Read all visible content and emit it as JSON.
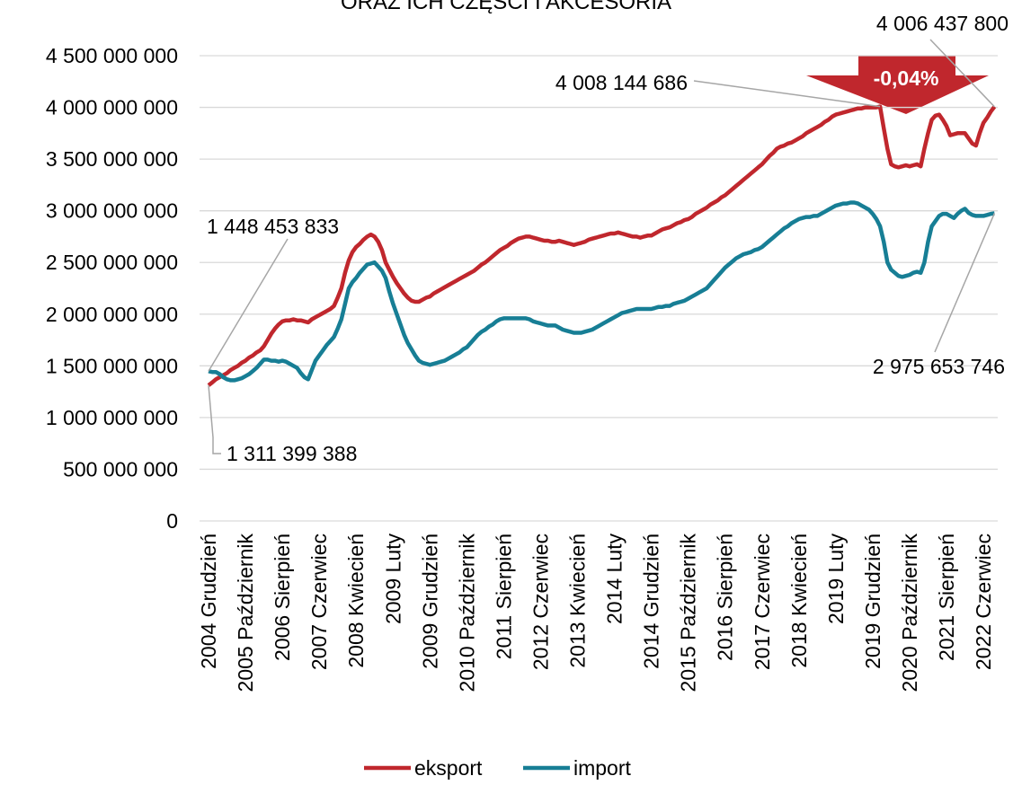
{
  "chart_data": {
    "type": "line",
    "title": "ORAZ ICH CZĘŚCI I AKCESORIA",
    "categories": [
      "2004 Grudzień",
      null,
      null,
      null,
      null,
      null,
      null,
      null,
      null,
      null,
      "2005 Październik",
      null,
      null,
      null,
      null,
      null,
      null,
      null,
      null,
      null,
      "2006 Sierpień",
      null,
      null,
      null,
      null,
      null,
      null,
      null,
      null,
      null,
      "2007 Czerwiec",
      null,
      null,
      null,
      null,
      null,
      null,
      null,
      null,
      null,
      "2008 Kwiecień",
      null,
      null,
      null,
      null,
      null,
      null,
      null,
      null,
      null,
      "2009 Luty",
      null,
      null,
      null,
      null,
      null,
      null,
      null,
      null,
      null,
      "2009 Grudzień",
      null,
      null,
      null,
      null,
      null,
      null,
      null,
      null,
      null,
      "2010 Październik",
      null,
      null,
      null,
      null,
      null,
      null,
      null,
      null,
      null,
      "2011 Sierpień",
      null,
      null,
      null,
      null,
      null,
      null,
      null,
      null,
      null,
      "2012 Czerwiec",
      null,
      null,
      null,
      null,
      null,
      null,
      null,
      null,
      null,
      "2013 Kwiecień",
      null,
      null,
      null,
      null,
      null,
      null,
      null,
      null,
      null,
      "2014 Luty",
      null,
      null,
      null,
      null,
      null,
      null,
      null,
      null,
      null,
      "2014 Grudzień",
      null,
      null,
      null,
      null,
      null,
      null,
      null,
      null,
      null,
      "2015 Październik",
      null,
      null,
      null,
      null,
      null,
      null,
      null,
      null,
      null,
      "2016 Sierpień",
      null,
      null,
      null,
      null,
      null,
      null,
      null,
      null,
      null,
      "2017 Czerwiec",
      null,
      null,
      null,
      null,
      null,
      null,
      null,
      null,
      null,
      "2018 Kwiecień",
      null,
      null,
      null,
      null,
      null,
      null,
      null,
      null,
      null,
      "2019 Luty",
      null,
      null,
      null,
      null,
      null,
      null,
      null,
      null,
      null,
      "2019 Grudzień",
      null,
      null,
      null,
      null,
      null,
      null,
      null,
      null,
      null,
      "2020 Październik",
      null,
      null,
      null,
      null,
      null,
      null,
      null,
      null,
      null,
      "2021 Sierpień",
      null,
      null,
      null,
      null,
      null,
      null,
      null,
      null,
      null,
      "2022 Czerwiec",
      null,
      null,
      null
    ],
    "series": [
      {
        "name": "eksport",
        "color": "#c0272d",
        "values": [
          1311399388,
          1340000000,
          1370000000,
          1390000000,
          1410000000,
          1430000000,
          1460000000,
          1480000000,
          1500000000,
          1530000000,
          1550000000,
          1580000000,
          1600000000,
          1630000000,
          1650000000,
          1690000000,
          1750000000,
          1810000000,
          1860000000,
          1900000000,
          1930000000,
          1940000000,
          1940000000,
          1950000000,
          1940000000,
          1940000000,
          1930000000,
          1920000000,
          1950000000,
          1970000000,
          1990000000,
          2010000000,
          2030000000,
          2050000000,
          2080000000,
          2160000000,
          2250000000,
          2400000000,
          2520000000,
          2600000000,
          2650000000,
          2680000000,
          2720000000,
          2750000000,
          2770000000,
          2750000000,
          2700000000,
          2620000000,
          2500000000,
          2430000000,
          2360000000,
          2300000000,
          2250000000,
          2200000000,
          2160000000,
          2130000000,
          2120000000,
          2120000000,
          2140000000,
          2160000000,
          2170000000,
          2200000000,
          2220000000,
          2240000000,
          2260000000,
          2280000000,
          2300000000,
          2320000000,
          2340000000,
          2360000000,
          2380000000,
          2400000000,
          2420000000,
          2450000000,
          2480000000,
          2500000000,
          2530000000,
          2560000000,
          2590000000,
          2620000000,
          2640000000,
          2660000000,
          2690000000,
          2710000000,
          2730000000,
          2740000000,
          2750000000,
          2750000000,
          2740000000,
          2730000000,
          2720000000,
          2710000000,
          2710000000,
          2700000000,
          2700000000,
          2710000000,
          2700000000,
          2690000000,
          2680000000,
          2670000000,
          2680000000,
          2690000000,
          2700000000,
          2720000000,
          2730000000,
          2740000000,
          2750000000,
          2760000000,
          2770000000,
          2780000000,
          2780000000,
          2790000000,
          2780000000,
          2770000000,
          2760000000,
          2750000000,
          2750000000,
          2740000000,
          2750000000,
          2760000000,
          2760000000,
          2780000000,
          2800000000,
          2820000000,
          2830000000,
          2840000000,
          2860000000,
          2880000000,
          2890000000,
          2910000000,
          2920000000,
          2940000000,
          2970000000,
          2990000000,
          3010000000,
          3030000000,
          3060000000,
          3080000000,
          3100000000,
          3130000000,
          3150000000,
          3180000000,
          3210000000,
          3240000000,
          3270000000,
          3300000000,
          3330000000,
          3360000000,
          3390000000,
          3420000000,
          3450000000,
          3490000000,
          3530000000,
          3560000000,
          3600000000,
          3620000000,
          3630000000,
          3650000000,
          3660000000,
          3680000000,
          3700000000,
          3720000000,
          3750000000,
          3770000000,
          3790000000,
          3810000000,
          3830000000,
          3860000000,
          3880000000,
          3910000000,
          3930000000,
          3940000000,
          3950000000,
          3960000000,
          3970000000,
          3980000000,
          3990000000,
          3990000000,
          4000000000,
          4000000000,
          4000000000,
          4000000000,
          4008144686,
          3800000000,
          3600000000,
          3450000000,
          3430000000,
          3420000000,
          3430000000,
          3440000000,
          3430000000,
          3440000000,
          3450000000,
          3430000000,
          3600000000,
          3750000000,
          3880000000,
          3920000000,
          3930000000,
          3880000000,
          3820000000,
          3730000000,
          3740000000,
          3750000000,
          3750000000,
          3750000000,
          3700000000,
          3650000000,
          3630000000,
          3750000000,
          3850000000,
          3900000000,
          3960000000,
          4006437800
        ]
      },
      {
        "name": "import",
        "color": "#177e95",
        "values": [
          1448453833,
          1440000000,
          1440000000,
          1420000000,
          1390000000,
          1370000000,
          1360000000,
          1360000000,
          1370000000,
          1380000000,
          1400000000,
          1420000000,
          1450000000,
          1480000000,
          1520000000,
          1560000000,
          1560000000,
          1550000000,
          1550000000,
          1540000000,
          1550000000,
          1540000000,
          1520000000,
          1500000000,
          1480000000,
          1430000000,
          1390000000,
          1370000000,
          1460000000,
          1550000000,
          1600000000,
          1650000000,
          1700000000,
          1740000000,
          1780000000,
          1860000000,
          1950000000,
          2100000000,
          2250000000,
          2310000000,
          2350000000,
          2400000000,
          2440000000,
          2480000000,
          2490000000,
          2500000000,
          2460000000,
          2420000000,
          2350000000,
          2220000000,
          2100000000,
          2000000000,
          1900000000,
          1800000000,
          1720000000,
          1660000000,
          1600000000,
          1550000000,
          1530000000,
          1520000000,
          1510000000,
          1520000000,
          1530000000,
          1540000000,
          1550000000,
          1570000000,
          1590000000,
          1610000000,
          1630000000,
          1660000000,
          1680000000,
          1720000000,
          1760000000,
          1800000000,
          1830000000,
          1850000000,
          1880000000,
          1900000000,
          1930000000,
          1950000000,
          1960000000,
          1960000000,
          1960000000,
          1960000000,
          1960000000,
          1960000000,
          1960000000,
          1950000000,
          1930000000,
          1920000000,
          1910000000,
          1900000000,
          1890000000,
          1890000000,
          1890000000,
          1870000000,
          1850000000,
          1840000000,
          1830000000,
          1820000000,
          1820000000,
          1820000000,
          1830000000,
          1840000000,
          1850000000,
          1870000000,
          1890000000,
          1910000000,
          1930000000,
          1950000000,
          1970000000,
          1990000000,
          2010000000,
          2020000000,
          2030000000,
          2040000000,
          2050000000,
          2050000000,
          2050000000,
          2050000000,
          2050000000,
          2060000000,
          2070000000,
          2070000000,
          2080000000,
          2080000000,
          2100000000,
          2110000000,
          2120000000,
          2130000000,
          2150000000,
          2170000000,
          2190000000,
          2210000000,
          2230000000,
          2250000000,
          2290000000,
          2330000000,
          2370000000,
          2410000000,
          2450000000,
          2480000000,
          2510000000,
          2540000000,
          2560000000,
          2580000000,
          2590000000,
          2600000000,
          2620000000,
          2630000000,
          2650000000,
          2680000000,
          2710000000,
          2740000000,
          2770000000,
          2800000000,
          2830000000,
          2850000000,
          2880000000,
          2900000000,
          2920000000,
          2930000000,
          2940000000,
          2940000000,
          2950000000,
          2950000000,
          2970000000,
          2990000000,
          3010000000,
          3030000000,
          3050000000,
          3060000000,
          3070000000,
          3070000000,
          3080000000,
          3080000000,
          3070000000,
          3050000000,
          3030000000,
          3010000000,
          2970000000,
          2920000000,
          2850000000,
          2700000000,
          2500000000,
          2430000000,
          2400000000,
          2370000000,
          2360000000,
          2370000000,
          2380000000,
          2400000000,
          2410000000,
          2400000000,
          2500000000,
          2700000000,
          2850000000,
          2900000000,
          2950000000,
          2970000000,
          2970000000,
          2950000000,
          2930000000,
          2970000000,
          3000000000,
          3020000000,
          2980000000,
          2960000000,
          2950000000,
          2950000000,
          2950000000,
          2960000000,
          2970000000,
          2975653746
        ]
      }
    ],
    "ylim": [
      0,
      4500000000
    ],
    "yticks": [
      0,
      {
        "value": 500000000,
        "label": "500 000 000"
      },
      {
        "value": 1000000000,
        "label": "1 000 000 000"
      },
      {
        "value": 1500000000,
        "label": "1 500 000 000"
      },
      {
        "value": 2000000000,
        "label": "2 000 000 000"
      },
      {
        "value": 2500000000,
        "label": "2 500 000 000"
      },
      {
        "value": 3000000000,
        "label": "3 000 000 000"
      },
      {
        "value": 3500000000,
        "label": "3 500 000 000"
      },
      {
        "value": 4000000000,
        "label": "4 000 000 000"
      },
      {
        "value": 4500000000,
        "label": "4 500 000 000"
      }
    ],
    "grid": true,
    "legend": "bottom",
    "annotations": [
      {
        "text": "4 006 437 800"
      },
      {
        "text": "4 008 144 686"
      },
      {
        "text": "-0,04%"
      },
      {
        "text": "1 448 453 833"
      },
      {
        "text": "1 311 399 388"
      },
      {
        "text": "2 975 653 746"
      }
    ]
  }
}
